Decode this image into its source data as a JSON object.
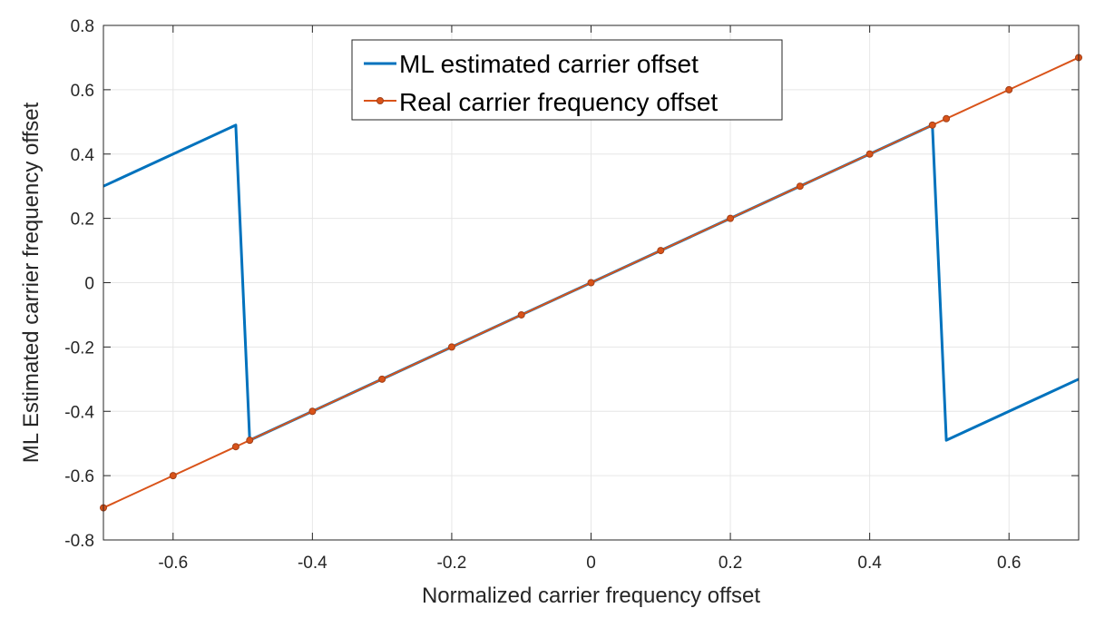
{
  "chart_data": {
    "type": "line",
    "title": "",
    "xlabel": "Normalized carrier frequency offset",
    "ylabel": "ML Estimated carrier frequency offset",
    "xlim": [
      -0.7,
      0.7
    ],
    "ylim": [
      -0.8,
      0.8
    ],
    "grid": true,
    "legend_position": "top-center",
    "x_ticks": [
      -0.6,
      -0.4,
      -0.2,
      0,
      0.2,
      0.4,
      0.6
    ],
    "x_tick_labels": [
      "-0.6",
      "-0.4",
      "-0.2",
      "0",
      "0.2",
      "0.4",
      "0.6"
    ],
    "y_ticks": [
      -0.8,
      -0.6,
      -0.4,
      -0.2,
      0,
      0.2,
      0.4,
      0.6,
      0.8
    ],
    "y_tick_labels": [
      "-0.8",
      "-0.6",
      "-0.4",
      "-0.2",
      "0",
      "0.2",
      "0.4",
      "0.6",
      "0.8"
    ],
    "series": [
      {
        "name": "ML estimated carrier offset",
        "color": "#0072BD",
        "marker": "none",
        "x": [
          -0.7,
          -0.51,
          -0.49,
          0.49,
          0.51,
          0.7
        ],
        "y": [
          0.3,
          0.49,
          -0.49,
          0.49,
          -0.49,
          -0.3
        ]
      },
      {
        "name": "Real carrier frequency offset",
        "color": "#D95319",
        "marker": "circle",
        "x": [
          -0.7,
          -0.6,
          -0.51,
          -0.49,
          -0.4,
          -0.3,
          -0.2,
          -0.1,
          0,
          0.1,
          0.2,
          0.3,
          0.4,
          0.49,
          0.51,
          0.6,
          0.7
        ],
        "y": [
          -0.7,
          -0.6,
          -0.51,
          -0.49,
          -0.4,
          -0.3,
          -0.2,
          -0.1,
          0,
          0.1,
          0.2,
          0.3,
          0.4,
          0.49,
          0.51,
          0.6,
          0.7
        ]
      }
    ]
  }
}
